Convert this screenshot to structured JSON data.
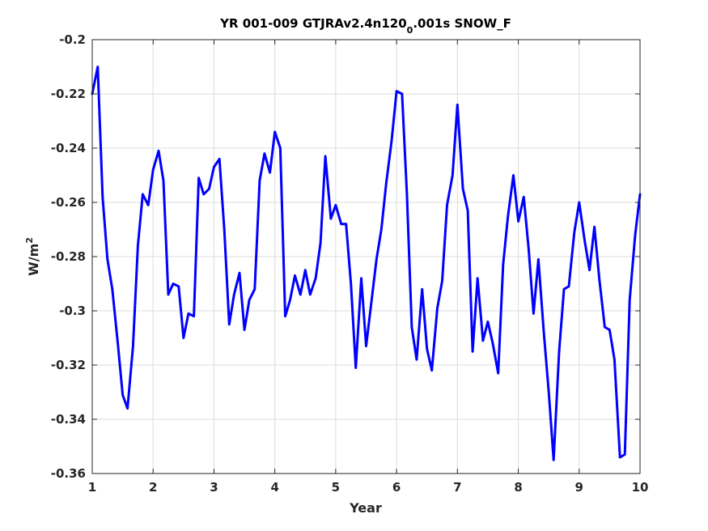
{
  "chart_data": {
    "type": "line",
    "title_main": "YR 001-009 GTJRAv2.4n120",
    "title_sub": "0",
    "title_tail": ".001s SNOW_F",
    "xlabel": "Year",
    "ylabel_main": "W/m",
    "ylabel_sup": "2",
    "xlim": [
      1,
      10
    ],
    "ylim": [
      -0.36,
      -0.2
    ],
    "xticks": [
      1,
      2,
      3,
      4,
      5,
      6,
      7,
      8,
      9,
      10
    ],
    "xtick_labels": [
      "1",
      "2",
      "3",
      "4",
      "5",
      "6",
      "7",
      "8",
      "9",
      "10"
    ],
    "yticks": [
      -0.36,
      -0.34,
      -0.32,
      -0.3,
      -0.28,
      -0.26,
      -0.24,
      -0.22,
      -0.2
    ],
    "ytick_labels": [
      "-0.36",
      "-0.34",
      "-0.32",
      "-0.3",
      "-0.28",
      "-0.26",
      "-0.24",
      "-0.22",
      "-0.2"
    ],
    "grid": true,
    "line_color": "#0000ff",
    "series": [
      {
        "x": [
          1.0,
          1.09,
          1.17,
          1.25,
          1.33,
          1.42,
          1.5,
          1.58,
          1.67,
          1.75,
          1.83,
          1.92,
          2.0,
          2.09,
          2.17,
          2.25,
          2.33,
          2.42,
          2.5,
          2.58,
          2.67,
          2.75,
          2.83,
          2.92,
          3.0,
          3.09,
          3.17,
          3.25,
          3.33,
          3.42,
          3.5,
          3.58,
          3.67,
          3.75,
          3.83,
          3.92,
          4.0,
          4.09,
          4.17,
          4.25,
          4.33,
          4.42,
          4.5,
          4.58,
          4.67,
          4.75,
          4.83,
          4.92,
          5.0,
          5.09,
          5.17,
          5.25,
          5.33,
          5.42,
          5.5,
          5.58,
          5.67,
          5.75,
          5.83,
          5.92,
          6.0,
          6.09,
          6.17,
          6.25,
          6.33,
          6.42,
          6.5,
          6.58,
          6.67,
          6.75,
          6.83,
          6.92,
          7.0,
          7.09,
          7.17,
          7.25,
          7.33,
          7.42,
          7.5,
          7.58,
          7.67,
          7.75,
          7.83,
          7.92,
          8.0,
          8.09,
          8.17,
          8.25,
          8.33,
          8.42,
          8.5,
          8.58,
          8.67,
          8.75,
          8.83,
          8.92,
          9.0,
          9.09,
          9.17,
          9.25,
          9.33,
          9.42,
          9.5,
          9.58,
          9.67,
          9.75,
          9.83,
          9.92,
          10.0
        ],
        "y": [
          -0.22,
          -0.21,
          -0.258,
          -0.281,
          -0.292,
          -0.312,
          -0.331,
          -0.336,
          -0.313,
          -0.276,
          -0.257,
          -0.261,
          -0.248,
          -0.241,
          -0.252,
          -0.294,
          -0.29,
          -0.291,
          -0.31,
          -0.301,
          -0.302,
          -0.251,
          -0.257,
          -0.255,
          -0.247,
          -0.244,
          -0.27,
          -0.305,
          -0.294,
          -0.286,
          -0.307,
          -0.296,
          -0.292,
          -0.252,
          -0.242,
          -0.249,
          -0.234,
          -0.24,
          -0.302,
          -0.296,
          -0.287,
          -0.294,
          -0.285,
          -0.294,
          -0.288,
          -0.275,
          -0.243,
          -0.266,
          -0.261,
          -0.268,
          -0.268,
          -0.29,
          -0.321,
          -0.288,
          -0.313,
          -0.298,
          -0.281,
          -0.27,
          -0.253,
          -0.237,
          -0.219,
          -0.22,
          -0.257,
          -0.306,
          -0.318,
          -0.292,
          -0.314,
          -0.322,
          -0.299,
          -0.289,
          -0.261,
          -0.25,
          -0.224,
          -0.255,
          -0.263,
          -0.315,
          -0.288,
          -0.311,
          -0.304,
          -0.312,
          -0.323,
          -0.283,
          -0.265,
          -0.25,
          -0.267,
          -0.258,
          -0.277,
          -0.301,
          -0.281,
          -0.308,
          -0.33,
          -0.355,
          -0.315,
          -0.292,
          -0.291,
          -0.271,
          -0.26,
          -0.274,
          -0.285,
          -0.269,
          -0.288,
          -0.306,
          -0.307,
          -0.318,
          -0.354,
          -0.353,
          -0.296,
          -0.272,
          -0.257
        ]
      }
    ]
  }
}
